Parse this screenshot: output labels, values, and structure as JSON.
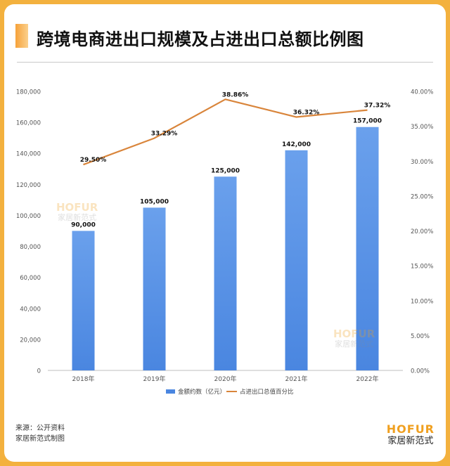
{
  "title": "跨境电商进出口规模及占进出口总额比例图",
  "source_line1": "来源：公开资料",
  "source_line2": "家居新范式制图",
  "logo": {
    "en": "HOFUR",
    "cn": "家居新范式"
  },
  "watermark": {
    "en": "HOFUR",
    "cn": "家居新范式"
  },
  "colors": {
    "bar": "#4a86e0",
    "line": "#d9853b",
    "frame": "#f3b13e"
  },
  "chart_data": {
    "type": "bar+line",
    "categories": [
      "2018年",
      "2019年",
      "2020年",
      "2021年",
      "2022年"
    ],
    "series": [
      {
        "name": "金额约数（亿元）",
        "type": "bar",
        "axis": "left",
        "values": [
          90000,
          105000,
          125000,
          142000,
          157000
        ],
        "labels": [
          "90,000",
          "105,000",
          "125,000",
          "142,000",
          "157,000"
        ]
      },
      {
        "name": "占进出口总值百分比",
        "type": "line",
        "axis": "right",
        "values": [
          29.5,
          33.29,
          38.86,
          36.32,
          37.32
        ],
        "labels": [
          "29.50%",
          "33.29%",
          "38.86%",
          "36.32%",
          "37.32%"
        ]
      }
    ],
    "ylim_left": [
      0,
      180000
    ],
    "ylim_right": [
      0,
      40
    ],
    "left_ticks": [
      "0",
      "20,000",
      "40,000",
      "60,000",
      "80,000",
      "100,000",
      "120,000",
      "140,000",
      "160,000",
      "180,000"
    ],
    "right_ticks": [
      "0.00%",
      "5.00%",
      "10.00%",
      "15.00%",
      "20.00%",
      "25.00%",
      "30.00%",
      "35.00%",
      "40.00%"
    ],
    "legend_position": "bottom",
    "grid": false
  }
}
